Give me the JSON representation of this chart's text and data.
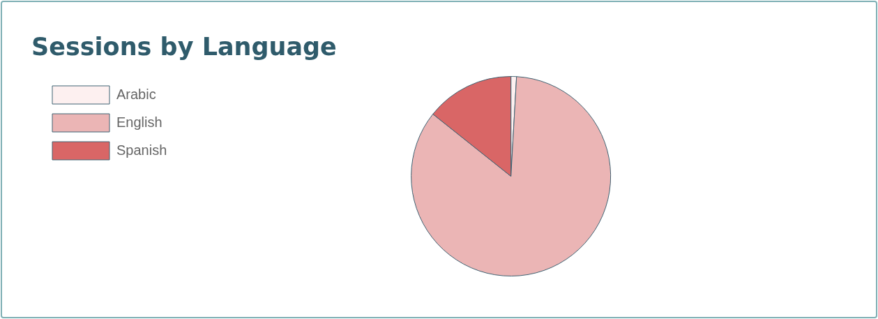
{
  "chart_data": {
    "type": "pie",
    "title": "Sessions by Language",
    "categories": [
      "Arabic",
      "English",
      "Spanish"
    ],
    "values": [
      0.9,
      84.8,
      14.3
    ],
    "colors": [
      "#fdf0f0",
      "#ebb5b5",
      "#d96666"
    ],
    "legend": "top left"
  }
}
